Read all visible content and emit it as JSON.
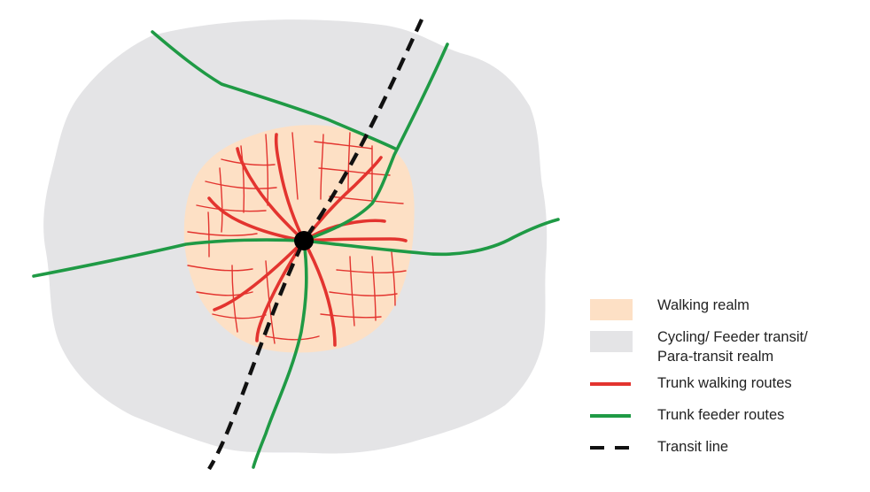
{
  "colors": {
    "walking_realm": "#fde0c5",
    "cycling_realm": "#e4e4e6",
    "trunk_walking": "#e3342f",
    "trunk_feeder": "#1f9a45",
    "transit_line": "#111111",
    "station": "#000000"
  },
  "legend": [
    {
      "key": "walking",
      "swatch": "box",
      "lines": [
        "Walking realm"
      ]
    },
    {
      "key": "cycling",
      "swatch": "box",
      "lines": [
        "Cycling/ Feeder transit/",
        "Para-transit realm"
      ]
    },
    {
      "key": "trunk_walking",
      "swatch": "line",
      "lines": [
        "Trunk walking routes"
      ]
    },
    {
      "key": "trunk_feeder",
      "swatch": "line",
      "lines": [
        "Trunk feeder routes"
      ]
    },
    {
      "key": "transit",
      "swatch": "dash",
      "lines": [
        "Transit line"
      ]
    }
  ]
}
